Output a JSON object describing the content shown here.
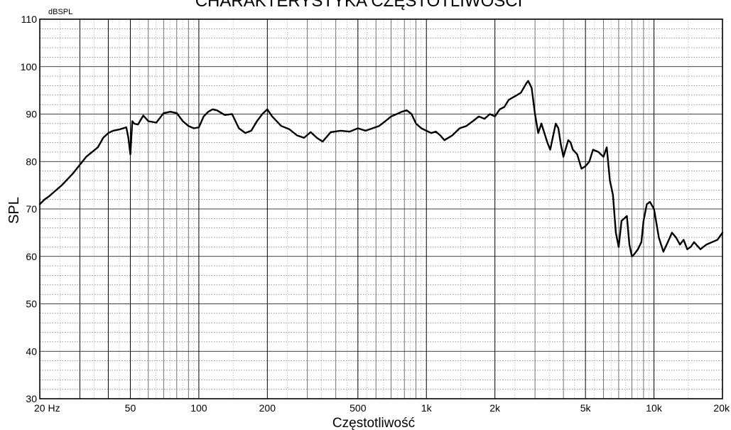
{
  "chart_data": {
    "type": "line",
    "title": "CHARAKTERYSTYKA CZĘSTOTLIWOŚCI",
    "xlabel": "Częstotliwość",
    "ylabel": "SPL",
    "yunit": "dBSPL",
    "xscale": "log",
    "xlim": [
      20,
      20000
    ],
    "ylim": [
      30,
      110
    ],
    "grid": true,
    "x_tick_values": [
      20,
      50,
      100,
      200,
      500,
      1000,
      2000,
      5000,
      10000,
      20000
    ],
    "x_tick_labels": [
      "20 Hz",
      "50",
      "100",
      "200",
      "500",
      "1k",
      "2k",
      "5k",
      "10k",
      "20k"
    ],
    "y_tick_values": [
      30,
      40,
      50,
      60,
      70,
      80,
      90,
      100,
      110
    ],
    "y_tick_labels": [
      "30",
      "40",
      "50",
      "60",
      "70",
      "80",
      "90",
      "100",
      "110"
    ],
    "colors": {
      "line": "#000000",
      "grid": "#000000",
      "background": "#ffffff"
    },
    "series": [
      {
        "x": [
          20,
          21,
          22,
          23,
          25,
          28,
          32,
          36,
          38,
          40,
          42,
          45,
          48,
          49,
          50,
          51,
          52,
          54,
          57,
          60,
          65,
          70,
          75,
          80,
          85,
          90,
          95,
          100,
          105,
          110,
          115,
          120,
          130,
          140,
          150,
          160,
          170,
          180,
          190,
          200,
          210,
          230,
          250,
          270,
          290,
          310,
          330,
          350,
          380,
          420,
          460,
          500,
          540,
          580,
          620,
          660,
          700,
          740,
          780,
          820,
          860,
          900,
          950,
          1000,
          1050,
          1100,
          1150,
          1200,
          1300,
          1400,
          1500,
          1600,
          1700,
          1800,
          1900,
          2000,
          2100,
          2200,
          2300,
          2400,
          2500,
          2600,
          2750,
          2800,
          2900,
          3000,
          3100,
          3200,
          3400,
          3500,
          3700,
          3800,
          3900,
          4000,
          4200,
          4300,
          4400,
          4600,
          4800,
          5000,
          5200,
          5400,
          5700,
          6000,
          6200,
          6400,
          6600,
          6800,
          7000,
          7200,
          7400,
          7600,
          7800,
          8000,
          8200,
          8500,
          8800,
          9000,
          9300,
          9600,
          10000,
          10500,
          11000,
          11500,
          12000,
          12500,
          13000,
          13500,
          14000,
          14500,
          15000,
          16000,
          17000,
          18000,
          19000,
          20000
        ],
        "values": [
          71,
          72,
          72.7,
          73.5,
          75,
          77.5,
          81,
          83,
          85,
          86,
          86.5,
          86.8,
          87.2,
          85,
          81.5,
          88.5,
          88,
          87.8,
          89.7,
          88.5,
          88.2,
          90.2,
          90.5,
          90.2,
          88.5,
          87.5,
          87,
          87.2,
          89.5,
          90.5,
          91,
          90.8,
          89.8,
          90,
          87,
          86,
          86.5,
          88.5,
          90,
          91,
          89.5,
          87.5,
          86.8,
          85.5,
          85,
          86.2,
          85,
          84.2,
          86.2,
          86.5,
          86.3,
          87,
          86.5,
          87,
          87.5,
          88.5,
          89.5,
          90,
          90.5,
          90.8,
          90,
          88,
          87,
          86.5,
          86,
          86.3,
          85.5,
          84.5,
          85.5,
          87,
          87.5,
          88.5,
          89.5,
          89,
          90,
          89.5,
          91,
          91.5,
          93,
          93.5,
          94,
          94.5,
          96.5,
          97,
          95.5,
          90,
          86,
          88,
          84,
          82.5,
          88,
          87,
          83.5,
          81,
          84.5,
          84,
          82.5,
          81.5,
          78.5,
          79,
          80,
          82.5,
          82,
          81,
          83,
          76,
          73,
          65,
          62,
          67.5,
          68,
          68.5,
          62.5,
          60,
          60.5,
          61.5,
          63,
          67.5,
          71,
          71.5,
          70,
          64,
          61,
          63,
          65,
          64,
          62.5,
          63.5,
          61.5,
          62,
          63,
          61.5,
          62.5,
          63,
          63.5,
          65
        ]
      }
    ]
  }
}
